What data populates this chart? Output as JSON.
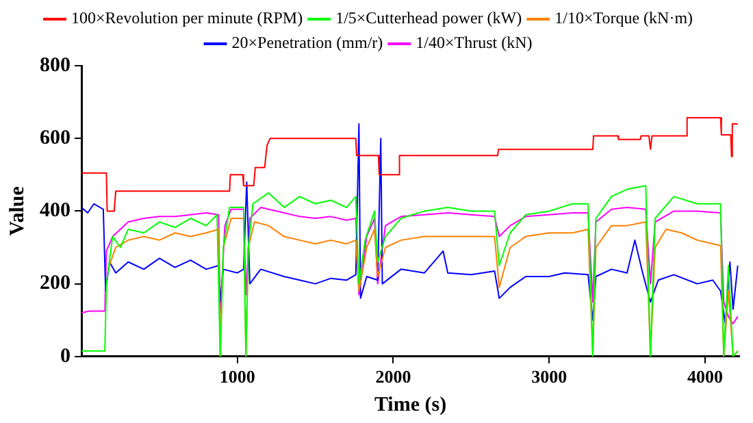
{
  "chart_data": {
    "type": "line",
    "xlabel": "Time (s)",
    "ylabel": "Value",
    "xlim": [
      0,
      4220
    ],
    "xticks": [
      1000,
      2000,
      3000,
      4000
    ],
    "ylim": [
      0,
      800
    ],
    "yticks": [
      0,
      200,
      400,
      600,
      800
    ],
    "grid": false,
    "legend": "top",
    "marker": "none",
    "line_style": "solid",
    "series": [
      {
        "name": "100×Revolution per minute (RPM)",
        "color": "#ff0000",
        "x": [
          0,
          160,
          165,
          210,
          220,
          950,
          955,
          1035,
          1040,
          1105,
          1115,
          1175,
          1190,
          1210,
          1760,
          1765,
          1905,
          1910,
          2035,
          2040,
          2670,
          2675,
          3280,
          3285,
          3440,
          3445,
          3585,
          3590,
          3640,
          3650,
          3660,
          3880,
          3885,
          4100,
          4105,
          4165,
          4170,
          4175,
          4210
        ],
        "values": [
          505,
          505,
          400,
          400,
          455,
          455,
          500,
          500,
          470,
          470,
          520,
          520,
          580,
          600,
          600,
          553,
          553,
          500,
          500,
          553,
          553,
          570,
          570,
          607,
          607,
          597,
          597,
          607,
          607,
          570,
          607,
          607,
          657,
          657,
          610,
          610,
          550,
          640,
          640
        ]
      },
      {
        "name": "1/5×Cutterhead power (kW)",
        "color": "#00ff00",
        "x": [
          0,
          150,
          160,
          200,
          250,
          300,
          400,
          500,
          600,
          700,
          800,
          870,
          890,
          910,
          950,
          1040,
          1055,
          1070,
          1100,
          1200,
          1300,
          1400,
          1500,
          1600,
          1700,
          1760,
          1780,
          1820,
          1880,
          1900,
          1950,
          2050,
          2200,
          2350,
          2500,
          2650,
          2680,
          2750,
          2850,
          3000,
          3150,
          3250,
          3280,
          3300,
          3400,
          3500,
          3620,
          3650,
          3680,
          3800,
          3950,
          4100,
          4120,
          4150,
          4180,
          4210
        ],
        "values": [
          15,
          15,
          200,
          330,
          300,
          350,
          340,
          370,
          355,
          380,
          360,
          390,
          0,
          300,
          410,
          410,
          0,
          300,
          420,
          450,
          410,
          440,
          420,
          430,
          410,
          440,
          200,
          320,
          400,
          260,
          330,
          380,
          400,
          410,
          400,
          400,
          250,
          340,
          390,
          400,
          420,
          420,
          0,
          380,
          440,
          460,
          470,
          0,
          380,
          440,
          420,
          420,
          0,
          250,
          0,
          15
        ]
      },
      {
        "name": "1/10×Torque (kN·m)",
        "color": "#ff8000",
        "x": [
          170,
          220,
          300,
          400,
          500,
          600,
          700,
          800,
          880,
          890,
          910,
          960,
          1040,
          1055,
          1070,
          1110,
          1200,
          1300,
          1400,
          1500,
          1600,
          1700,
          1760,
          1780,
          1830,
          1880,
          1900,
          1950,
          2050,
          2200,
          2350,
          2500,
          2650,
          2680,
          2750,
          2850,
          3000,
          3150,
          3250,
          3280,
          3300,
          3400,
          3500,
          3620,
          3650,
          3680,
          3750,
          3850,
          3950,
          4050,
          4100,
          4120,
          4150,
          4180,
          4210
        ],
        "values": [
          240,
          300,
          320,
          330,
          320,
          340,
          330,
          340,
          350,
          0,
          300,
          380,
          380,
          0,
          300,
          370,
          360,
          330,
          320,
          310,
          320,
          310,
          320,
          180,
          300,
          350,
          220,
          300,
          320,
          330,
          330,
          330,
          330,
          190,
          300,
          330,
          340,
          340,
          350,
          0,
          300,
          360,
          360,
          370,
          0,
          300,
          350,
          340,
          320,
          310,
          305,
          0,
          180,
          0,
          15
        ]
      },
      {
        "name": "20×Penetration (mm/r)",
        "color": "#0000ff",
        "x": [
          0,
          40,
          80,
          140,
          155,
          180,
          220,
          300,
          400,
          500,
          600,
          700,
          800,
          880,
          890,
          910,
          1000,
          1040,
          1060,
          1080,
          1150,
          1300,
          1400,
          1500,
          1600,
          1700,
          1760,
          1780,
          1790,
          1830,
          1900,
          1920,
          1930,
          2050,
          2200,
          2320,
          2350,
          2500,
          2650,
          2680,
          2750,
          2850,
          3000,
          3100,
          3250,
          3280,
          3300,
          3400,
          3500,
          3550,
          3600,
          3650,
          3700,
          3800,
          3950,
          4050,
          4100,
          4130,
          4160,
          4180,
          4210
        ],
        "values": [
          410,
          395,
          420,
          405,
          180,
          260,
          230,
          260,
          240,
          270,
          245,
          265,
          240,
          250,
          150,
          240,
          230,
          240,
          480,
          200,
          240,
          220,
          210,
          200,
          215,
          210,
          225,
          640,
          160,
          220,
          210,
          600,
          200,
          240,
          230,
          290,
          230,
          225,
          235,
          160,
          190,
          220,
          220,
          230,
          225,
          100,
          220,
          240,
          230,
          320,
          230,
          150,
          210,
          225,
          200,
          210,
          180,
          90,
          260,
          130,
          250
        ]
      },
      {
        "name": "1/40×Thrust (kN)",
        "color": "#ff00ff",
        "x": [
          0,
          50,
          150,
          160,
          200,
          300,
          400,
          500,
          600,
          700,
          800,
          880,
          890,
          920,
          960,
          1040,
          1055,
          1080,
          1150,
          1300,
          1400,
          1500,
          1600,
          1700,
          1760,
          1780,
          1830,
          1880,
          1900,
          1950,
          2050,
          2200,
          2350,
          2500,
          2650,
          2680,
          2750,
          2850,
          3000,
          3150,
          3250,
          3280,
          3300,
          3400,
          3500,
          3620,
          3650,
          3680,
          3800,
          3950,
          4100,
          4120,
          4150,
          4180,
          4210
        ],
        "values": [
          120,
          125,
          125,
          290,
          330,
          370,
          380,
          385,
          385,
          390,
          395,
          390,
          120,
          360,
          405,
          405,
          170,
          380,
          410,
          395,
          385,
          380,
          385,
          375,
          380,
          170,
          330,
          380,
          200,
          360,
          385,
          390,
          395,
          390,
          385,
          330,
          360,
          385,
          390,
          395,
          395,
          150,
          370,
          405,
          410,
          405,
          200,
          370,
          400,
          400,
          395,
          150,
          110,
          90,
          110
        ]
      }
    ]
  }
}
